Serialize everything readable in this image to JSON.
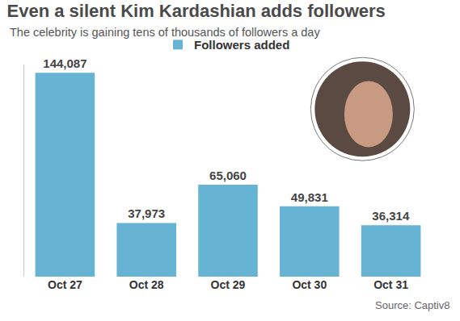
{
  "chart_data": {
    "type": "bar",
    "title": "Even a silent Kim Kardashian adds followers",
    "subtitle": "The celebrity is gaining tens of thousands of followers a day",
    "source": "Source: Captiv8",
    "categories": [
      "Oct 27",
      "Oct 28",
      "Oct 29",
      "Oct 30",
      "Oct 31"
    ],
    "series": [
      {
        "name": "Followers added",
        "color": "#67b3d3",
        "values": [
          144087,
          37973,
          65060,
          49831,
          36314
        ],
        "value_labels": [
          "144,087",
          "37,973",
          "65,060",
          "49,831",
          "36,314"
        ]
      }
    ],
    "ylim": [
      0,
      150000
    ],
    "grid": false,
    "legend": "top",
    "data_labels": true,
    "tick_labels": "x"
  }
}
